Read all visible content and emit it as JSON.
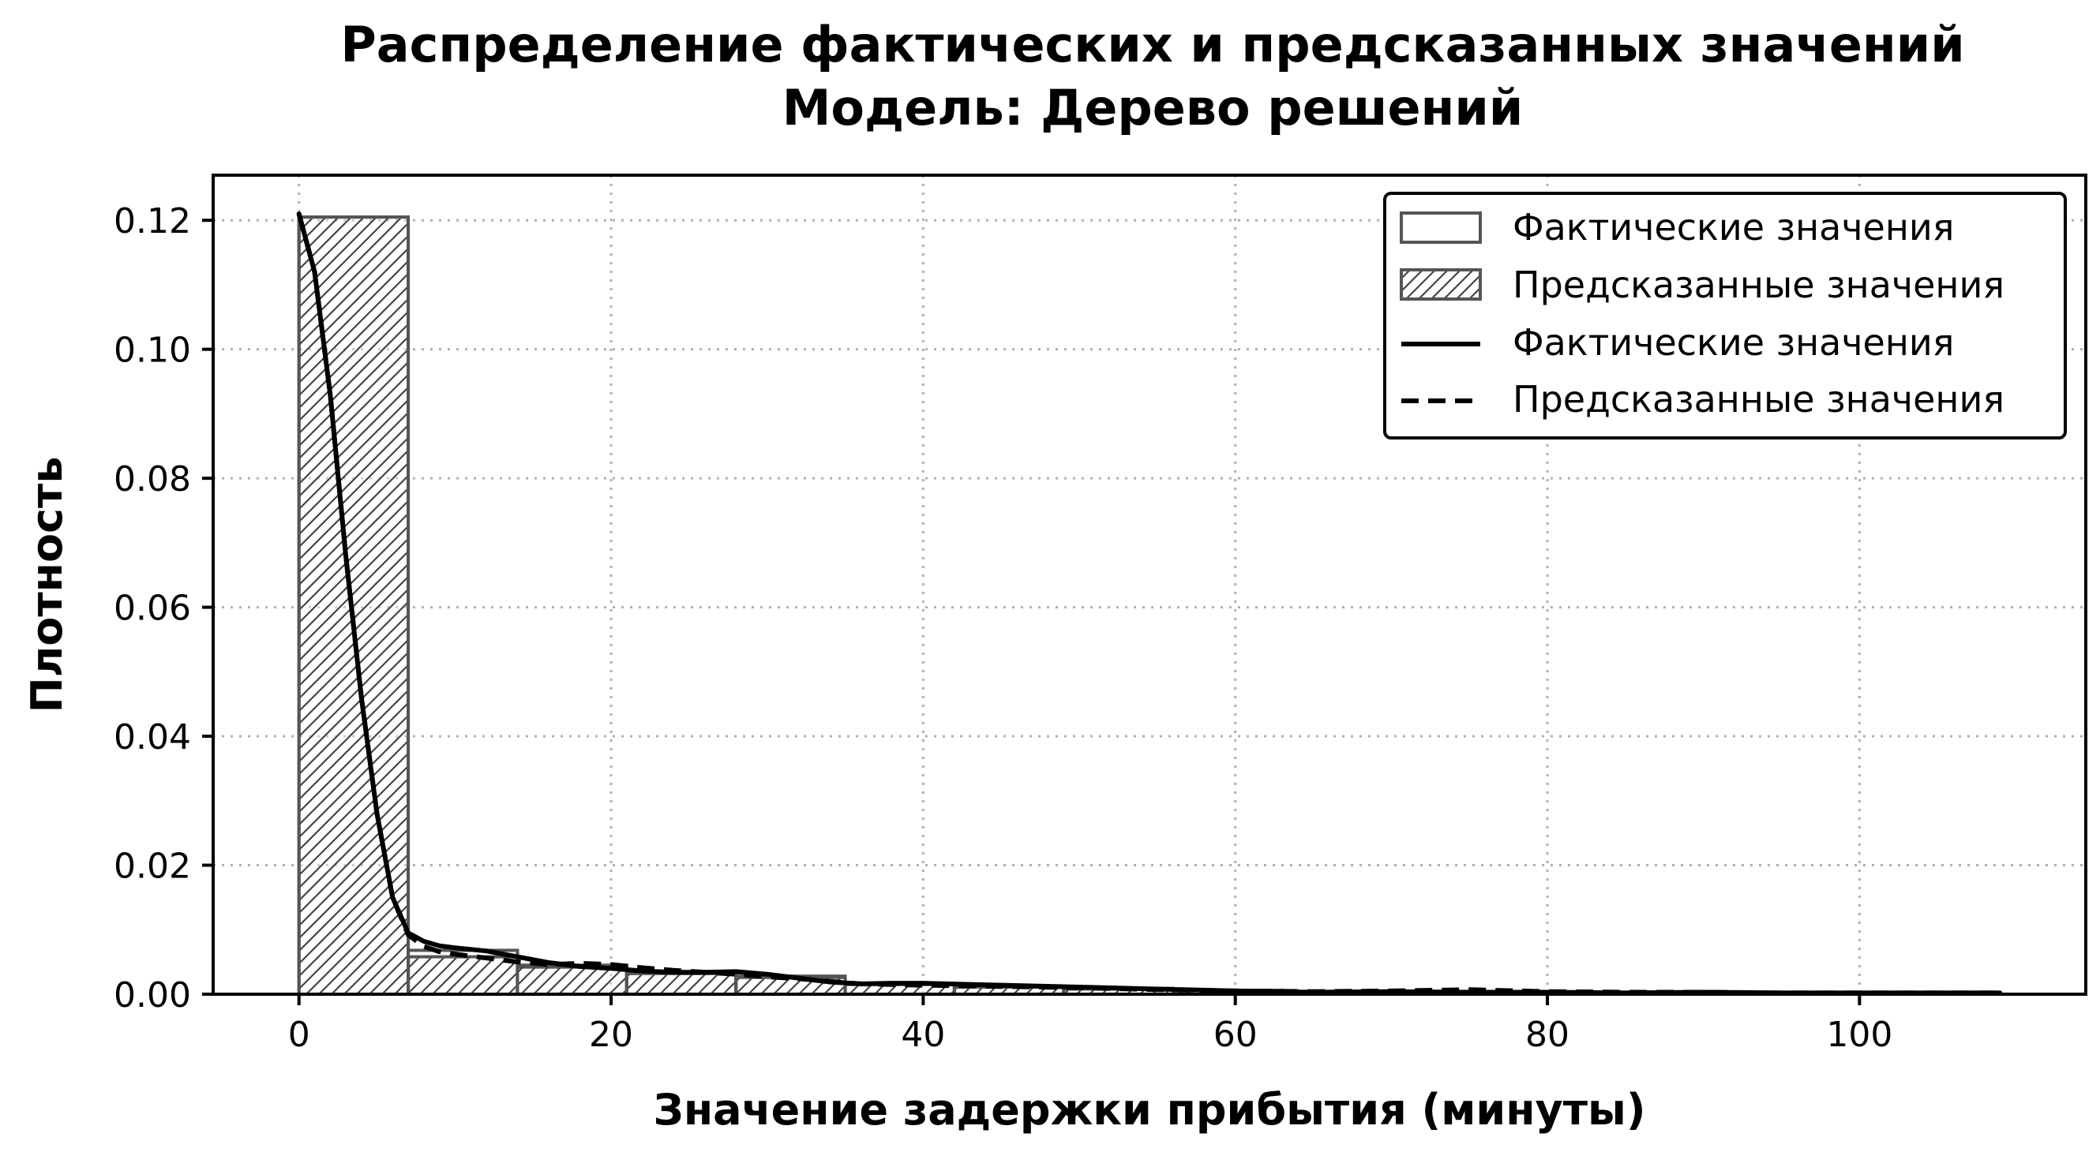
{
  "chart_data": {
    "type": "histogram+kde",
    "title": "Распределение фактических и предсказанных значений",
    "subtitle": "Модель: Дерево решений",
    "xlabel": "Значение задержки прибытия (минуты)",
    "ylabel": "Плотность",
    "xlim": [
      -5.5,
      114.5
    ],
    "ylim": [
      0,
      0.127
    ],
    "xticks": [
      0,
      20,
      40,
      60,
      80,
      100
    ],
    "yticks": [
      0.0,
      0.02,
      0.04,
      0.06,
      0.08,
      0.1,
      0.12
    ],
    "xtick_labels": [
      "0",
      "20",
      "40",
      "60",
      "80",
      "100"
    ],
    "ytick_labels": [
      "0.00",
      "0.02",
      "0.04",
      "0.06",
      "0.08",
      "0.10",
      "0.12"
    ],
    "grid": true,
    "legend_placement": "upper right",
    "bin_edges": [
      0,
      7,
      14,
      21,
      28,
      35,
      42,
      49,
      56,
      63,
      70,
      77,
      84,
      91,
      98,
      105
    ],
    "histograms": [
      {
        "name": "Фактические значения",
        "style": "outline",
        "values": [
          0.1205,
          0.0068,
          0.0042,
          0.0035,
          0.0028,
          0.0016,
          0.0012,
          0.0009,
          0.0006,
          0.0004,
          0.0004,
          0.0003,
          0.0003,
          0.0002,
          0.0002
        ]
      },
      {
        "name": "Предсказанные значения",
        "style": "hatched",
        "values": [
          0.1205,
          0.0058,
          0.0045,
          0.0032,
          0.0026,
          0.0015,
          0.0011,
          0.0008,
          0.0006,
          0.0004,
          0.0004,
          0.0003,
          0.0003,
          0.0002,
          0.0002
        ]
      }
    ],
    "kde": [
      {
        "name": "Фактические значения",
        "style": "solid",
        "x": [
          0,
          1,
          2,
          3,
          4,
          5,
          6,
          7,
          8,
          9,
          10,
          12,
          14,
          16,
          18,
          20,
          22,
          24,
          26,
          28,
          30,
          32,
          34,
          36,
          38,
          40,
          45,
          50,
          55,
          60,
          65,
          70,
          75,
          80,
          85,
          90,
          95,
          100,
          105,
          109
        ],
        "y": [
          0.121,
          0.112,
          0.093,
          0.068,
          0.046,
          0.028,
          0.015,
          0.0095,
          0.0082,
          0.0075,
          0.0072,
          0.0067,
          0.0058,
          0.0049,
          0.0043,
          0.004,
          0.0036,
          0.0034,
          0.0034,
          0.0035,
          0.0031,
          0.0025,
          0.0019,
          0.0016,
          0.0017,
          0.0017,
          0.0014,
          0.0011,
          0.0008,
          0.0005,
          0.0003,
          0.0004,
          0.0003,
          0.0003,
          0.0002,
          0.0003,
          0.0002,
          0.0002,
          0.0002,
          0.0002
        ]
      },
      {
        "name": "Предсказанные значения",
        "style": "dashed",
        "x": [
          0,
          1,
          2,
          3,
          4,
          5,
          6,
          7,
          8,
          9,
          10,
          12,
          14,
          16,
          18,
          20,
          22,
          24,
          26,
          28,
          30,
          32,
          34,
          36,
          38,
          40,
          45,
          50,
          55,
          60,
          65,
          70,
          75,
          80,
          85,
          90,
          95,
          100,
          105,
          109
        ],
        "y": [
          0.121,
          0.112,
          0.093,
          0.068,
          0.046,
          0.028,
          0.015,
          0.0092,
          0.0074,
          0.0066,
          0.0062,
          0.0056,
          0.005,
          0.0046,
          0.0048,
          0.0046,
          0.0041,
          0.0037,
          0.0034,
          0.0031,
          0.0027,
          0.0024,
          0.002,
          0.0016,
          0.0015,
          0.0014,
          0.0012,
          0.001,
          0.0007,
          0.0005,
          0.0004,
          0.0005,
          0.0007,
          0.0004,
          0.0003,
          0.0003,
          0.0002,
          0.0002,
          0.0002,
          0.0002
        ]
      }
    ],
    "colors": {
      "kde": "#000000",
      "bar_edge": "#555555",
      "hatch": "#444444",
      "axes": "#000000"
    }
  }
}
